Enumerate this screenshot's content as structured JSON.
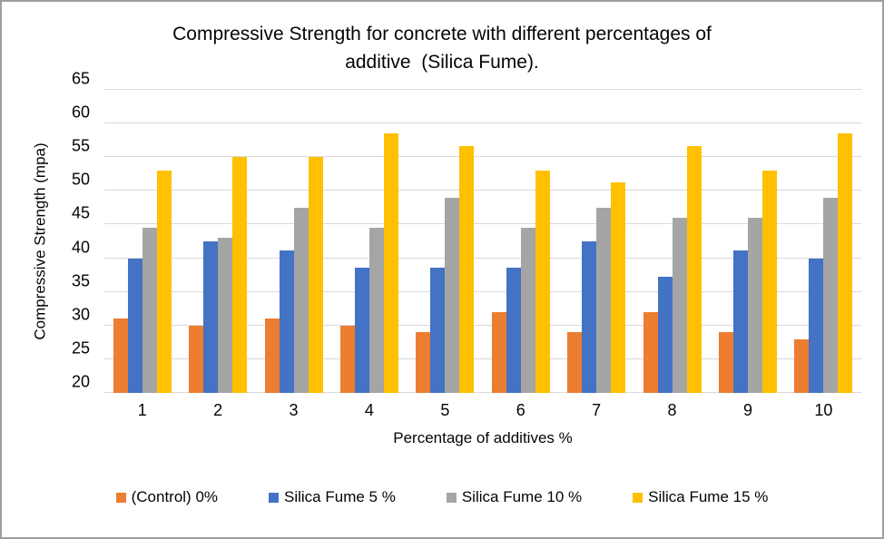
{
  "chart_data": {
    "type": "bar",
    "title_lines": [
      "Compressive Strength for concrete with different percentages of",
      "additive  (Silica Fume)."
    ],
    "xlabel": "Percentage of additives %",
    "ylabel": "Compressive Strength (mpa)",
    "ylim": [
      20,
      65
    ],
    "yticks": [
      20,
      25,
      30,
      35,
      40,
      45,
      50,
      55,
      60,
      65
    ],
    "grid": "horizontal",
    "legend_position": "bottom",
    "categories": [
      "1",
      "2",
      "3",
      "4",
      "5",
      "6",
      "7",
      "8",
      "9",
      "10"
    ],
    "series": [
      {
        "name": "(Control) 0%",
        "color": "#ED7D31",
        "values": [
          31,
          30,
          31,
          30,
          29,
          32,
          29,
          32,
          29,
          28
        ]
      },
      {
        "name": "Silica Fume 5 %",
        "color": "#4472C4",
        "values": [
          40,
          42.5,
          41.2,
          38.6,
          38.6,
          38.6,
          42.5,
          37.3,
          41.2,
          40
        ]
      },
      {
        "name": "Silica Fume 10 %",
        "color": "#A5A5A5",
        "values": [
          44.5,
          43,
          47.5,
          44.5,
          49,
          44.5,
          47.5,
          46,
          46,
          49
        ]
      },
      {
        "name": "Silica Fume 15 %",
        "color": "#FFC000",
        "values": [
          53,
          55,
          55,
          58.6,
          56.7,
          53,
          51.2,
          56.7,
          53,
          58.6
        ]
      }
    ],
    "colors": {
      "gridline": "#D9D9D9",
      "text": "#050505",
      "frame_border": "#9E9E9E",
      "background": "#FFFFFF"
    }
  }
}
